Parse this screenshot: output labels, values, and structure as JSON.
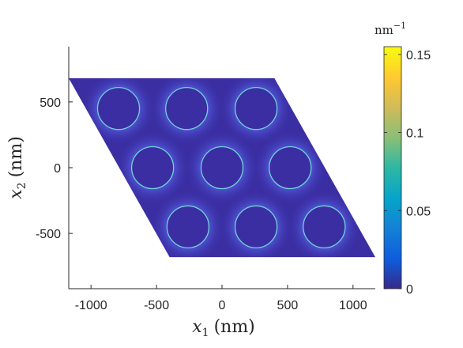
{
  "chart_data": {
    "type": "heatmap",
    "xlabel": {
      "var": "x",
      "sub": "1",
      "unit": "(nm)"
    },
    "ylabel": {
      "var": "x",
      "sub": "2",
      "unit": "(nm)"
    },
    "xlim": [
      -1170,
      1170
    ],
    "ylim": [
      -920,
      920
    ],
    "x_ticks": [
      {
        "value": -1000,
        "label": "-1000"
      },
      {
        "value": -500,
        "label": "-500"
      },
      {
        "value": 0,
        "label": "0"
      },
      {
        "value": 500,
        "label": "500"
      },
      {
        "value": 1000,
        "label": "1000"
      }
    ],
    "y_ticks": [
      {
        "value": -500,
        "label": "-500"
      },
      {
        "value": 0,
        "label": "0"
      },
      {
        "value": 500,
        "label": "500"
      }
    ],
    "domain_polygon_nm": [
      [
        -1170,
        680
      ],
      [
        400,
        680
      ],
      [
        1170,
        -680
      ],
      [
        -400,
        -680
      ]
    ],
    "circles": {
      "radius_nm": 160,
      "centers_nm": [
        [
          -790,
          450
        ],
        [
          -270,
          450
        ],
        [
          260,
          450
        ],
        [
          -530,
          0
        ],
        [
          0,
          0
        ],
        [
          520,
          0
        ],
        [
          -260,
          -450
        ],
        [
          260,
          -450
        ],
        [
          780,
          -450
        ]
      ]
    },
    "colorbar": {
      "unit": {
        "base": "nm",
        "exp": "−1"
      },
      "range": [
        0,
        0.155
      ],
      "ticks": [
        {
          "value": 0,
          "label": "0"
        },
        {
          "value": 0.05,
          "label": "0.05"
        },
        {
          "value": 0.1,
          "label": "0.1"
        },
        {
          "value": 0.15,
          "label": "0.15"
        }
      ],
      "colormap": "parula"
    },
    "colors": {
      "background_field": "#3b2ea3",
      "ring": "#6fd3d8",
      "glow": "#5a68e6"
    }
  }
}
